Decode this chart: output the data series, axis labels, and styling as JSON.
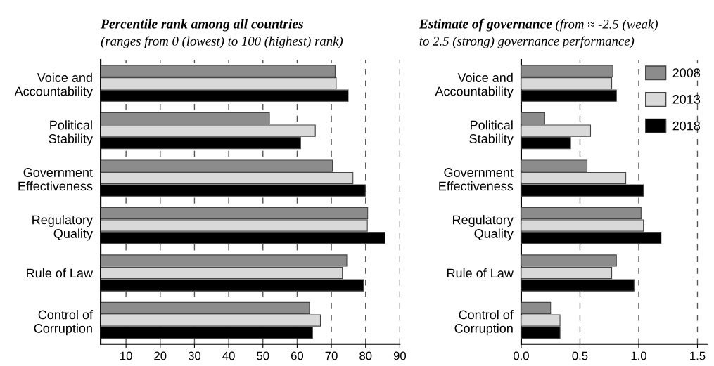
{
  "chart_data": [
    {
      "type": "bar",
      "orientation": "horizontal",
      "title": "Percentile rank among all countries",
      "subtitle": "(ranges from 0 (lowest) to 100 (highest) rank)",
      "categories": [
        "Voice and\nAccountability",
        "Political\nStability",
        "Government\nEffectiveness",
        "Regulatory\nQuality",
        "Rule of Law",
        "Control of\nCorruption"
      ],
      "series": [
        {
          "color": "#8c8c8c",
          "values": [
            71.1,
            51.9,
            70.3,
            80.6,
            74.5,
            63.6
          ]
        },
        {
          "color": "#d9d9d9",
          "values": [
            71.4,
            65.3,
            76.3,
            80.5,
            73.2,
            66.8
          ]
        },
        {
          "color": "#000000",
          "values": [
            74.9,
            61.0,
            79.9,
            85.7,
            79.4,
            64.5
          ]
        }
      ],
      "xlim": [
        2.6,
        90
      ],
      "xticks": [
        10,
        20,
        30,
        40,
        50,
        60,
        70,
        80,
        90
      ],
      "grid": "x"
    },
    {
      "type": "bar",
      "orientation": "horizontal",
      "title": "Estimate of governance",
      "subtitle": "(from ≈ -2.5 (weak)\nto 2.5 (strong) governance performance)",
      "categories": [
        "Voice and\nAccountability",
        "Political\nStability",
        "Government\nEffectiveness",
        "Regulatory\nQuality",
        "Rule of Law",
        "Control of\nCorruption"
      ],
      "series": [
        {
          "name": "2008",
          "color": "#8c8c8c",
          "values": [
            0.78,
            0.2,
            0.56,
            1.02,
            0.81,
            0.25
          ]
        },
        {
          "name": "2013",
          "color": "#d9d9d9",
          "values": [
            0.77,
            0.59,
            0.89,
            1.04,
            0.77,
            0.33
          ]
        },
        {
          "name": "2018",
          "color": "#000000",
          "values": [
            0.81,
            0.42,
            1.04,
            1.19,
            0.96,
            0.33
          ]
        }
      ],
      "xlim": [
        0,
        1.58
      ],
      "xticks": [
        {
          "value": 0,
          "label": "0.0"
        },
        0.5,
        {
          "value": 1,
          "label": "1.0"
        },
        1.5
      ],
      "grid": "x",
      "legend": "top right"
    }
  ]
}
